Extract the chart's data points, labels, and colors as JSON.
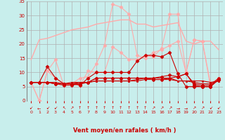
{
  "background_color": "#c8eeec",
  "grid_color": "#b0b0b0",
  "xlabel": "Vent moyen/en rafales ( km/h )",
  "xlabel_color": "#cc0000",
  "tick_color": "#cc0000",
  "xlim": [
    -0.5,
    23.5
  ],
  "ylim": [
    0,
    35
  ],
  "yticks": [
    0,
    5,
    10,
    15,
    20,
    25,
    30,
    35
  ],
  "xticks": [
    0,
    1,
    2,
    3,
    4,
    5,
    6,
    7,
    8,
    9,
    10,
    11,
    12,
    13,
    14,
    15,
    16,
    17,
    18,
    19,
    20,
    21,
    22,
    23
  ],
  "series": [
    {
      "color": "#ffaaaa",
      "marker": null,
      "ms": 0,
      "lw": 1.0,
      "y": [
        14.5,
        21.5,
        22,
        23,
        24,
        25,
        25.5,
        26,
        27,
        27.5,
        28,
        28.5,
        28.5,
        27,
        27,
        26,
        26.5,
        27,
        27.5,
        21,
        20,
        21,
        21,
        18
      ]
    },
    {
      "color": "#ffaaaa",
      "marker": "D",
      "ms": 2.5,
      "lw": 0.8,
      "y": [
        6.5,
        0,
        10.5,
        14.5,
        5.5,
        6,
        8,
        8.5,
        13,
        19.5,
        34,
        33,
        30.5,
        16,
        15,
        17,
        18,
        19.5,
        21,
        10,
        21.5,
        21,
        5,
        8
      ]
    },
    {
      "color": "#ffaaaa",
      "marker": "D",
      "ms": 2.5,
      "lw": 0.8,
      "y": [
        6.5,
        0,
        10.5,
        8,
        6,
        6,
        5.5,
        10.5,
        10,
        10,
        19,
        17,
        14.5,
        14.5,
        16,
        15.5,
        18.5,
        30.5,
        30.5,
        10,
        21.5,
        21,
        6,
        8
      ]
    },
    {
      "color": "#cc0000",
      "marker": "D",
      "ms": 2.5,
      "lw": 0.8,
      "y": [
        6.5,
        6.5,
        12,
        8,
        6,
        6,
        5.5,
        8,
        10,
        10,
        10,
        10,
        10,
        14,
        16,
        16,
        15.5,
        17,
        9.5,
        5,
        5,
        5,
        5,
        7.5
      ]
    },
    {
      "color": "#cc0000",
      "marker": "s",
      "ms": 2,
      "lw": 0.8,
      "y": [
        6.5,
        6.5,
        6.5,
        6.5,
        6,
        6,
        6.5,
        6.5,
        7,
        7,
        7,
        7,
        7,
        7,
        7.5,
        7.5,
        7.5,
        7.5,
        7,
        7,
        7,
        7,
        6.5,
        7
      ]
    },
    {
      "color": "#cc0000",
      "marker": "s",
      "ms": 2,
      "lw": 0.8,
      "y": [
        6.5,
        6.5,
        6.5,
        6,
        6,
        6.5,
        6.5,
        6.5,
        7,
        7,
        7,
        7,
        7,
        7.5,
        8,
        8,
        8,
        8,
        7,
        7,
        6.5,
        6,
        6,
        7
      ]
    },
    {
      "color": "#cc0000",
      "marker": "P",
      "ms": 3,
      "lw": 0.8,
      "y": [
        6.5,
        6.5,
        6.5,
        6,
        6,
        6,
        6,
        6.5,
        8,
        8,
        8,
        8,
        8,
        8,
        8,
        7.5,
        7.5,
        8,
        8.5,
        9.5,
        6,
        5.5,
        5.5,
        8
      ]
    },
    {
      "color": "#cc0000",
      "marker": "P",
      "ms": 3,
      "lw": 0.8,
      "y": [
        6.5,
        6.5,
        6.5,
        6,
        5.5,
        5.5,
        6,
        6.5,
        8,
        8,
        8,
        8,
        8,
        8,
        8,
        8,
        8.5,
        9,
        8.5,
        9.5,
        5.5,
        5,
        5,
        7.5
      ]
    }
  ],
  "wind_arrows": [
    "↙",
    "←",
    "↙",
    "↙",
    "↖",
    "↗",
    "↑",
    "↑",
    "↑",
    "↑",
    "↑",
    "↑",
    "↑",
    "↑",
    "↑",
    "↗",
    "↗",
    "↗",
    "→",
    "→",
    "↗",
    "↗",
    "↙",
    "↙"
  ]
}
